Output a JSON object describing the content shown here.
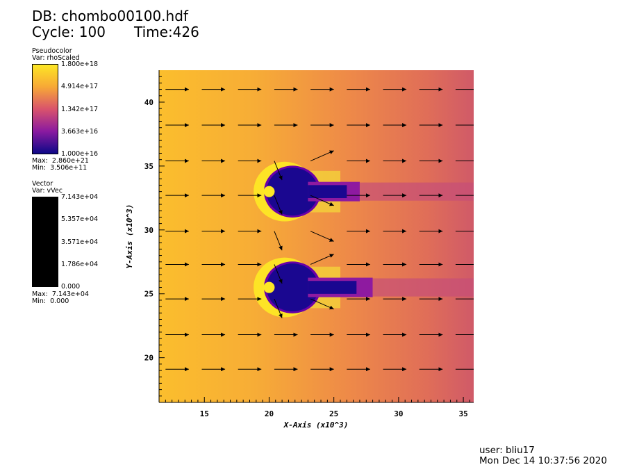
{
  "header": {
    "db": "DB: chombo00100.hdf",
    "cycle": "Cycle: 100",
    "time": "Time:426"
  },
  "pseudocolor_legend": {
    "title": "Pseudocolor",
    "var": "Var: rhoScaled",
    "ticks": [
      "1.800e+18",
      "4.914e+17",
      "1.342e+17",
      "3.663e+16",
      "1.000e+16"
    ],
    "max": "Max:  2.860e+21",
    "min": "Min:  3.506e+11",
    "colors": [
      "#fde725",
      "#f7a836",
      "#d9536c",
      "#8a1aa0",
      "#0d0887"
    ]
  },
  "vector_legend": {
    "title": "Vector",
    "var": "Var: vVec",
    "ticks": [
      "7.143e+04",
      "5.357e+04",
      "3.571e+04",
      "1.786e+04",
      "0.000"
    ],
    "max": "Max:  7.143e+04",
    "min": "Min:  0.000",
    "color": "#000000"
  },
  "chart_data": {
    "type": "heatmap",
    "title": "",
    "xlabel": "X-Axis (x10^3)",
    "ylabel": "Y-Axis (x10^3)",
    "xlim": [
      11.5,
      35.8
    ],
    "ylim": [
      16.5,
      42.5
    ],
    "xticks": [
      "15",
      "20",
      "25",
      "30",
      "35"
    ],
    "yticks": [
      "20",
      "25",
      "30",
      "35",
      "40"
    ],
    "xtick_values": [
      15,
      20,
      25,
      30,
      35
    ],
    "ytick_values": [
      20,
      25,
      30,
      35,
      40
    ],
    "field": "rhoScaled",
    "colormap": "plasma",
    "scale": "log",
    "vector_field": "vVec",
    "obstacles": [
      {
        "x": 20.0,
        "y": 33.0,
        "color": "#fde725"
      },
      {
        "x": 20.0,
        "y": 25.5,
        "color": "#fde725"
      }
    ],
    "wakes": [
      {
        "head_x": 20.0,
        "head_y": 33.0,
        "tail_x": 27.0
      },
      {
        "head_x": 20.0,
        "head_y": 25.5,
        "tail_x": 28.0
      }
    ],
    "vector_rows_y": [
      41.0,
      38.2,
      35.4,
      32.7,
      29.9,
      27.3,
      24.6,
      21.8,
      19.1
    ]
  },
  "footer": {
    "user": "user: bliu17",
    "date": "Mon Dec 14 10:37:56 2020"
  }
}
